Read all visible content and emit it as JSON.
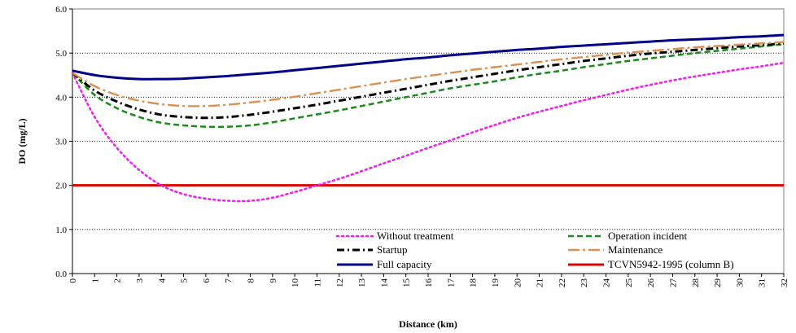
{
  "chart_data": {
    "type": "line",
    "title": "",
    "xlabel": "Distance (km)",
    "ylabel": "DO (mg/L)",
    "xlim": [
      0,
      32
    ],
    "ylim": [
      0,
      6
    ],
    "x_ticks": [
      0,
      1,
      2,
      3,
      4,
      5,
      6,
      7,
      8,
      9,
      10,
      11,
      12,
      13,
      14,
      15,
      16,
      17,
      18,
      19,
      20,
      21,
      22,
      23,
      24,
      25,
      26,
      27,
      28,
      29,
      30,
      31,
      32
    ],
    "y_ticks": [
      "0.0",
      "1.0",
      "2.0",
      "3.0",
      "4.0",
      "5.0",
      "6.0"
    ],
    "grid": "horizontal dotted",
    "legend_position": "bottom-right inside plot",
    "x": [
      0,
      1,
      2,
      3,
      4,
      5,
      6,
      7,
      8,
      9,
      10,
      11,
      12,
      13,
      14,
      15,
      16,
      17,
      18,
      19,
      20,
      21,
      22,
      23,
      24,
      25,
      26,
      27,
      28,
      29,
      30,
      31,
      32
    ],
    "series": [
      {
        "name": "Without treatment",
        "color": "#ee22ee",
        "dash": "dotted",
        "values": [
          4.55,
          3.55,
          2.85,
          2.35,
          2.0,
          1.8,
          1.7,
          1.65,
          1.65,
          1.72,
          1.85,
          2.0,
          2.15,
          2.32,
          2.5,
          2.67,
          2.85,
          3.02,
          3.2,
          3.37,
          3.53,
          3.67,
          3.8,
          3.93,
          4.05,
          4.17,
          4.28,
          4.38,
          4.47,
          4.55,
          4.63,
          4.7,
          4.78
        ]
      },
      {
        "name": "Operation incident",
        "color": "#1a8a1a",
        "dash": "dashed",
        "values": [
          4.55,
          4.05,
          3.75,
          3.55,
          3.42,
          3.36,
          3.33,
          3.33,
          3.36,
          3.43,
          3.52,
          3.61,
          3.7,
          3.8,
          3.9,
          4.0,
          4.1,
          4.2,
          4.28,
          4.36,
          4.45,
          4.53,
          4.6,
          4.68,
          4.75,
          4.82,
          4.88,
          4.94,
          5.0,
          5.05,
          5.1,
          5.15,
          5.2
        ]
      },
      {
        "name": "Startup",
        "color": "#000000",
        "dash": "dashdot",
        "values": [
          4.55,
          4.15,
          3.9,
          3.72,
          3.6,
          3.55,
          3.53,
          3.55,
          3.6,
          3.67,
          3.75,
          3.83,
          3.92,
          4.01,
          4.1,
          4.19,
          4.28,
          4.37,
          4.45,
          4.53,
          4.61,
          4.68,
          4.75,
          4.82,
          4.88,
          4.94,
          4.99,
          5.03,
          5.07,
          5.11,
          5.15,
          5.18,
          5.22
        ]
      },
      {
        "name": "Maintenance",
        "color": "#d99050",
        "dash": "longdashdot",
        "values": [
          4.55,
          4.25,
          4.05,
          3.92,
          3.84,
          3.8,
          3.8,
          3.83,
          3.88,
          3.94,
          4.01,
          4.09,
          4.17,
          4.25,
          4.33,
          4.41,
          4.48,
          4.55,
          4.62,
          4.68,
          4.74,
          4.8,
          4.86,
          4.91,
          4.96,
          5.01,
          5.05,
          5.09,
          5.13,
          5.16,
          5.19,
          5.22,
          5.25
        ]
      },
      {
        "name": "Full capacity",
        "color": "#00008b",
        "dash": "solid",
        "values": [
          4.6,
          4.5,
          4.44,
          4.41,
          4.41,
          4.42,
          4.45,
          4.48,
          4.52,
          4.56,
          4.61,
          4.66,
          4.71,
          4.76,
          4.81,
          4.86,
          4.9,
          4.95,
          4.99,
          5.03,
          5.07,
          5.1,
          5.14,
          5.17,
          5.2,
          5.23,
          5.26,
          5.29,
          5.31,
          5.33,
          5.36,
          5.38,
          5.41
        ]
      },
      {
        "name": "TCVN5942-1995 (column B)",
        "color": "#dd0000",
        "dash": "solid",
        "values": [
          2,
          2,
          2,
          2,
          2,
          2,
          2,
          2,
          2,
          2,
          2,
          2,
          2,
          2,
          2,
          2,
          2,
          2,
          2,
          2,
          2,
          2,
          2,
          2,
          2,
          2,
          2,
          2,
          2,
          2,
          2,
          2,
          2
        ]
      }
    ]
  }
}
